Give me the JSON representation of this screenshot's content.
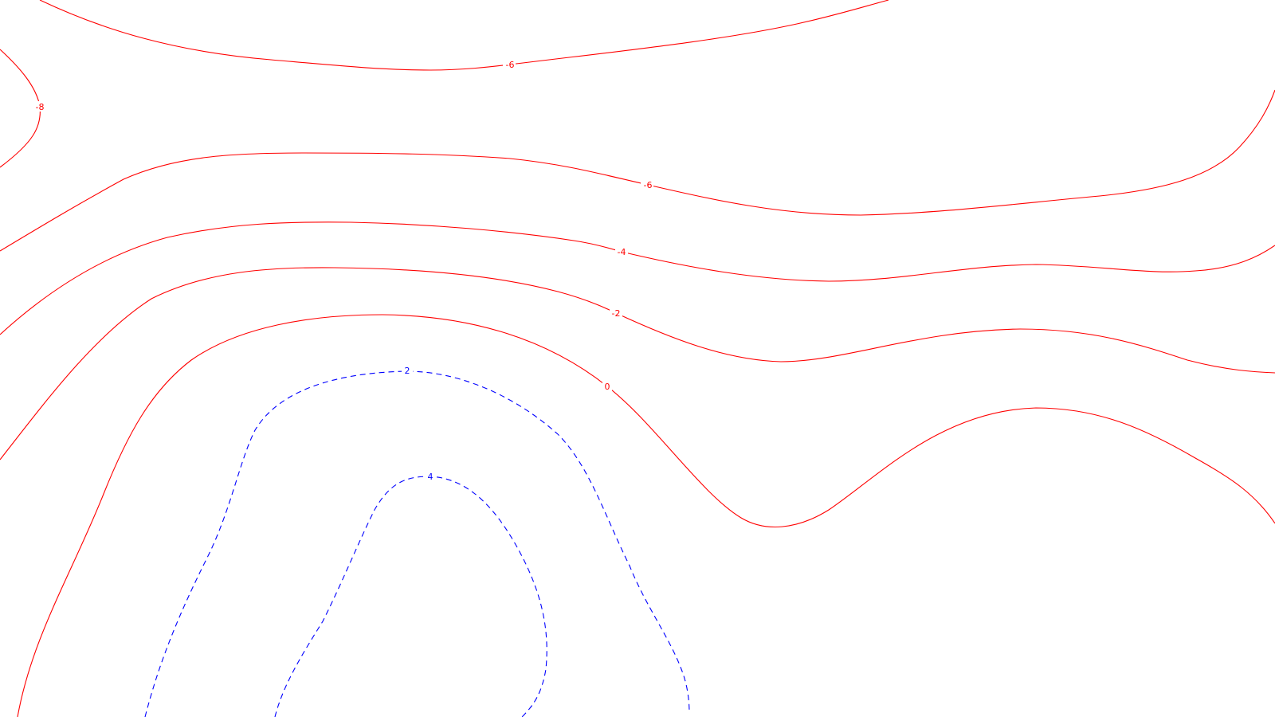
{
  "map": {
    "title": "",
    "colors": {
      "negative": "#ff0000",
      "positive": "#0000ff",
      "background": "#ffffff"
    },
    "contours": [
      {
        "id": "neg8-left",
        "value": -8,
        "label": "-8",
        "sign": "negative"
      },
      {
        "id": "neg6-top",
        "value": -6,
        "label": "-6",
        "sign": "negative"
      },
      {
        "id": "neg6-mid",
        "value": -6,
        "label": "-6",
        "sign": "negative"
      },
      {
        "id": "neg4",
        "value": -4,
        "label": "-4",
        "sign": "negative"
      },
      {
        "id": "neg2",
        "value": -2,
        "label": "-2",
        "sign": "negative"
      },
      {
        "id": "zero",
        "value": 0,
        "label": "0",
        "sign": "negative"
      },
      {
        "id": "pos2",
        "value": 2,
        "label": "2",
        "sign": "positive"
      },
      {
        "id": "pos4",
        "value": 4,
        "label": "4",
        "sign": "positive"
      }
    ]
  }
}
